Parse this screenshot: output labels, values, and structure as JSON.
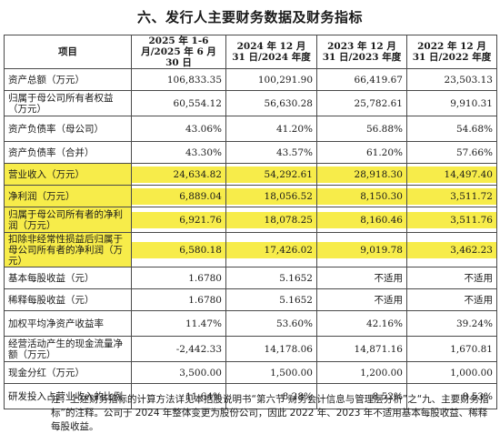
{
  "title": "六、发行人主要财务数据及财务指标",
  "table": {
    "headers": [
      "项目",
      "2025 年 1-6 月/2025 年 6 月 30 日",
      "2024 年 12 月 31 日/2024 年度",
      "2023 年 12 月 31 日/2023 年度",
      "2022 年 12 月 31 日/2022 年度"
    ],
    "rows": [
      {
        "label": "资产总额（万元）",
        "values": [
          "106,833.35",
          "100,291.90",
          "66,419.67",
          "23,503.13"
        ],
        "highlight": false
      },
      {
        "label": "归属于母公司所有者权益（万元）",
        "values": [
          "60,554.12",
          "56,630.28",
          "25,782.61",
          "9,910.31"
        ],
        "highlight": false
      },
      {
        "label": "资产负债率（母公司）",
        "values": [
          "43.06%",
          "41.20%",
          "56.88%",
          "54.68%"
        ],
        "highlight": false
      },
      {
        "label": "资产负债率（合并）",
        "values": [
          "43.30%",
          "43.57%",
          "61.20%",
          "57.66%"
        ],
        "highlight": false
      },
      {
        "label": "营业收入（万元）",
        "values": [
          "24,634.82",
          "54,292.61",
          "28,918.30",
          "14,497.40"
        ],
        "highlight": true
      },
      {
        "label": "净利润（万元）",
        "values": [
          "6,889.04",
          "18,056.52",
          "8,150.30",
          "3,511.72"
        ],
        "highlight": true
      },
      {
        "label": "归属于母公司所有者的净利润（万元）",
        "values": [
          "6,921.76",
          "18,078.25",
          "8,160.46",
          "3,511.76"
        ],
        "highlight": true
      },
      {
        "label": "扣除非经常性损益后归属于母公司所有者的净利润（万元）",
        "values": [
          "6,580.18",
          "17,426.02",
          "9,019.78",
          "3,462.23"
        ],
        "highlight": true
      },
      {
        "label": "基本每股收益（元）",
        "values": [
          "1.6780",
          "5.1652",
          "不适用",
          "不适用"
        ],
        "highlight": false
      },
      {
        "label": "稀释每股收益（元）",
        "values": [
          "1.6780",
          "5.1652",
          "不适用",
          "不适用"
        ],
        "highlight": false
      },
      {
        "label": "加权平均净资产收益率",
        "values": [
          "11.47%",
          "53.60%",
          "42.16%",
          "39.24%"
        ],
        "highlight": false
      },
      {
        "label": "经营活动产生的现金流量净额（万元）",
        "values": [
          "-2,442.33",
          "14,178.06",
          "14,871.16",
          "1,670.81"
        ],
        "highlight": false
      },
      {
        "label": "现金分红（万元）",
        "values": [
          "3,500.00",
          "1,500.00",
          "1,200.00",
          "1,000.00"
        ],
        "highlight": false
      },
      {
        "label": "研发投入占营业收入的比例",
        "values": [
          "11.64%",
          "8.28%",
          "8.52%",
          "8.53%"
        ],
        "highlight": false
      }
    ]
  },
  "note": "注：上述财务指标的计算方法详见本招股说明书“第六节 财务会计信息与管理层分析”之“九、主要财务指标”的注释。公司于 2024 年整体变更为股份公司，因此 2022 年、2023 年不适用基本每股收益、稀释每股收益。",
  "colors": {
    "highlight": "#f7ec4a",
    "border": "#4a4a4a"
  }
}
